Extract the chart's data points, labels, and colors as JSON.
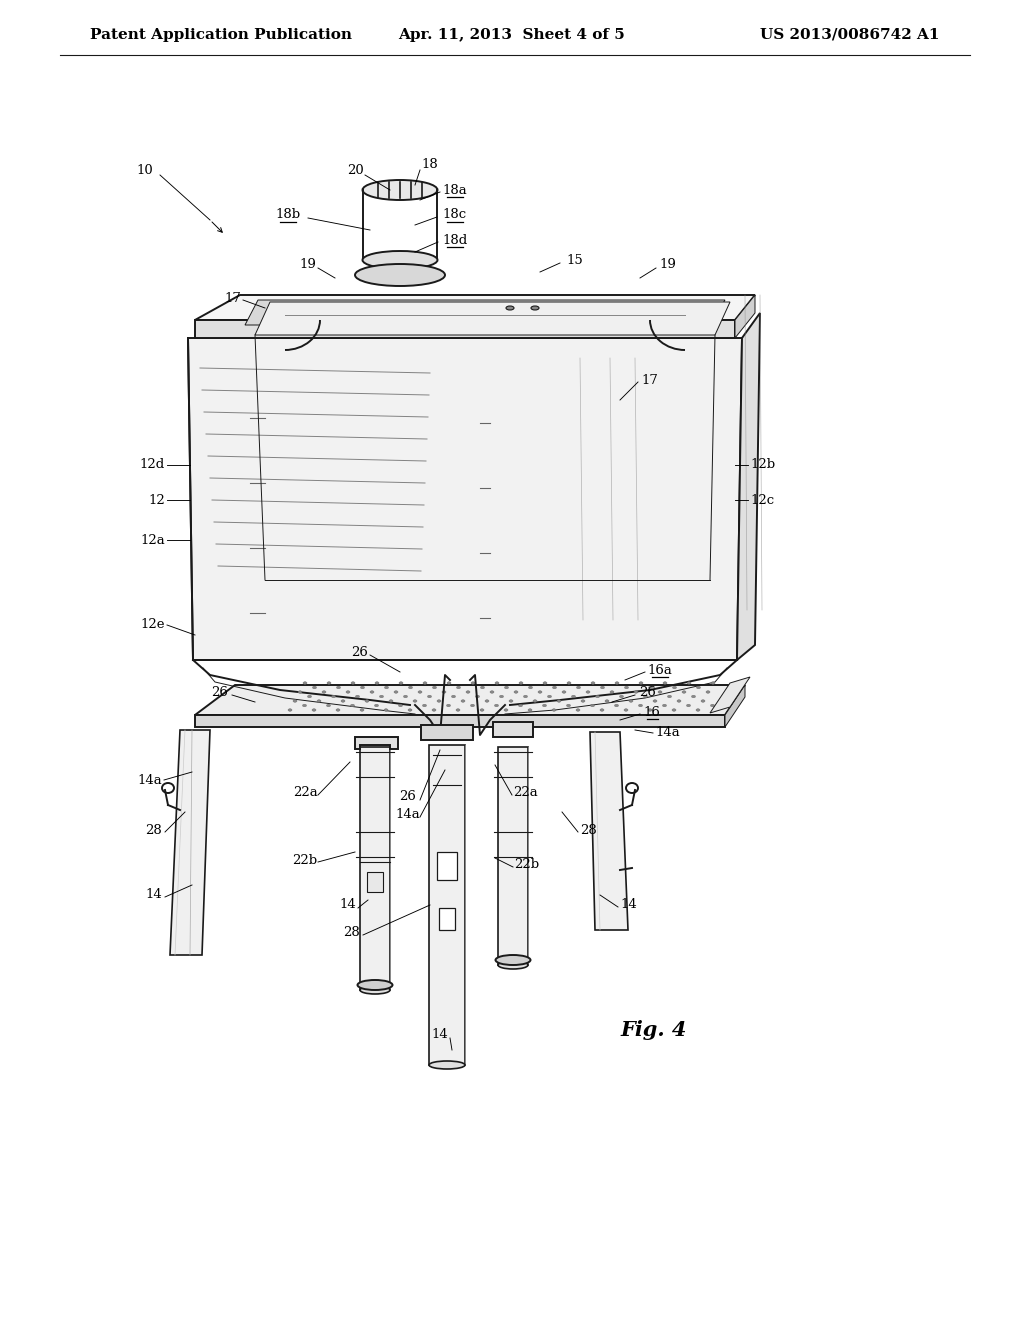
{
  "background_color": "#ffffff",
  "header_left": "Patent Application Publication",
  "header_center": "Apr. 11, 2013  Sheet 4 of 5",
  "header_right": "US 2013/0086742 A1",
  "figure_label": "Fig. 4",
  "lc": "#1a1a1a",
  "lw_main": 1.4,
  "lw_thin": 0.7,
  "lw_thick": 2.0,
  "fs": 9.5,
  "header_fontsize": 11
}
